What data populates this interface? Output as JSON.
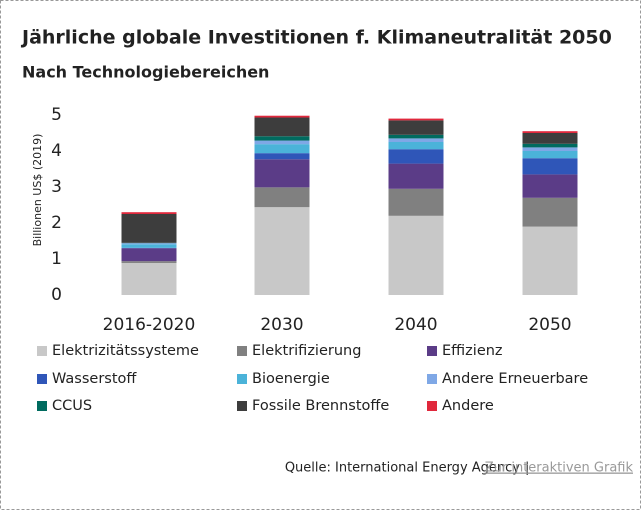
{
  "chart_data": {
    "type": "stacked_bar",
    "title": "Jährliche globale Investitionen f. Klimaneutralität 2050",
    "subtitle": "Nach Technologiebereichen",
    "y_label": "Billionen US$ (2019)",
    "categories": [
      "2016-2020",
      "2030",
      "2040",
      "2050"
    ],
    "series": [
      {
        "name": "Elektrizitätssysteme",
        "color": "#c8c8c8",
        "values": [
          0.89,
          2.44,
          2.2,
          1.9
        ]
      },
      {
        "name": "Elektrifizierung",
        "color": "#808080",
        "values": [
          0.05,
          0.55,
          0.75,
          0.8
        ]
      },
      {
        "name": "Effizienz",
        "color": "#5b3c87",
        "values": [
          0.36,
          0.78,
          0.7,
          0.65
        ]
      },
      {
        "name": "Wasserstoff",
        "color": "#2f56b8",
        "values": [
          0.01,
          0.17,
          0.4,
          0.45
        ]
      },
      {
        "name": "Bioenergie",
        "color": "#4bb3d9",
        "values": [
          0.1,
          0.25,
          0.2,
          0.2
        ]
      },
      {
        "name": "Andere Erneuerbare",
        "color": "#7fa8e6",
        "values": [
          0.03,
          0.1,
          0.1,
          0.1
        ]
      },
      {
        "name": "CCUS",
        "color": "#006b5f",
        "values": [
          0.01,
          0.12,
          0.1,
          0.1
        ]
      },
      {
        "name": "Fossile Brennstoffe",
        "color": "#3d3d3d",
        "values": [
          0.8,
          0.52,
          0.4,
          0.3
        ]
      },
      {
        "name": "Andere",
        "color": "#e0283c",
        "values": [
          0.05,
          0.05,
          0.05,
          0.05
        ]
      }
    ],
    "ylim": [
      0,
      5
    ],
    "yticks": [
      0,
      1,
      2,
      3,
      4,
      5
    ],
    "source": "Quelle: International Energy Agency",
    "separator": "|",
    "link_text": "Zur interaktiven Grafik"
  }
}
